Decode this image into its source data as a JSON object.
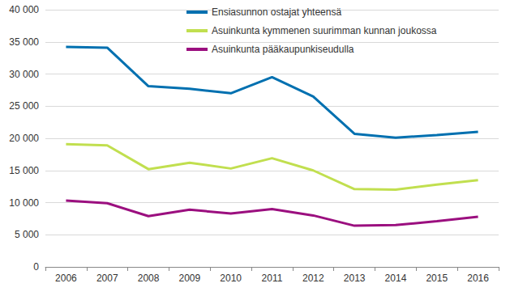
{
  "chart_data": {
    "type": "line",
    "categories": [
      "2006",
      "2007",
      "2008",
      "2009",
      "2010",
      "2011",
      "2012",
      "2013",
      "2014",
      "2015",
      "2016"
    ],
    "series": [
      {
        "name": "Ensiasunnon ostajat yhteensä",
        "color": "#0070b0",
        "values": [
          34200,
          34100,
          28100,
          27700,
          27000,
          29500,
          26500,
          20700,
          20100,
          20500,
          21000
        ]
      },
      {
        "name": "Asuinkunta kymmenen suurimman kunnan joukossa",
        "color": "#c1df4f",
        "values": [
          19100,
          18900,
          15200,
          16200,
          15300,
          16900,
          15000,
          12100,
          12000,
          12800,
          13500
        ]
      },
      {
        "name": "Asuinkunta pääkaupunkiseudulla",
        "color": "#9b0f7f",
        "values": [
          10300,
          9900,
          7900,
          8900,
          8300,
          9000,
          8000,
          6400,
          6500,
          7100,
          7800
        ]
      }
    ],
    "ylim": [
      0,
      40000
    ],
    "yticks": [
      0,
      {
        "value": 5000,
        "label": "5 000"
      },
      {
        "value": 10000,
        "label": "10 000"
      },
      {
        "value": 15000,
        "label": "15 000"
      },
      {
        "value": 20000,
        "label": "20 000"
      },
      {
        "value": 25000,
        "label": "25 000"
      },
      {
        "value": 30000,
        "label": "30 000"
      },
      {
        "value": 35000,
        "label": "35 000"
      },
      {
        "value": 40000,
        "label": "40 000"
      }
    ],
    "grid": true,
    "legend": "top"
  }
}
